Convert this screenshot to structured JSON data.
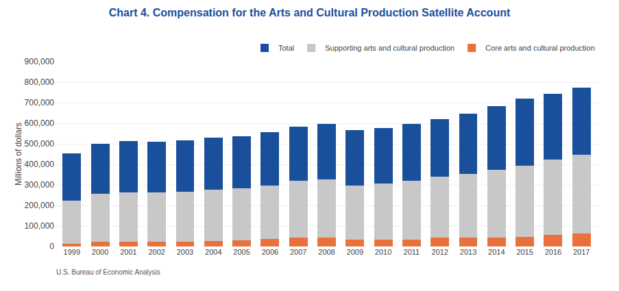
{
  "chart_data": {
    "type": "bar",
    "stacked": true,
    "title": "Chart 4. Compensation for the Arts and Cultural Production Satellite Account",
    "ylabel": "Millions of dollars",
    "annotations": [
      "U.S. Bureau of Economic Analysis"
    ],
    "categories": [
      "1999",
      "2000",
      "2001",
      "2002",
      "2003",
      "2004",
      "2005",
      "2006",
      "2007",
      "2008",
      "2009",
      "2010",
      "2011",
      "2012",
      "2013",
      "2014",
      "2015",
      "2016",
      "2017"
    ],
    "series": [
      {
        "name": "Core arts and cultural production",
        "color": "#e8713c",
        "values": [
          15000,
          22000,
          23000,
          23000,
          25000,
          28000,
          30000,
          38000,
          42000,
          42000,
          33000,
          35000,
          35000,
          42000,
          42000,
          45000,
          48000,
          58000,
          63000
        ]
      },
      {
        "name": "Supporting arts and cultural production",
        "color": "#c8c8c8",
        "values": [
          210000,
          235000,
          240000,
          240000,
          243000,
          248000,
          253000,
          260000,
          278000,
          285000,
          265000,
          272000,
          285000,
          298000,
          310000,
          327000,
          347000,
          365000,
          385000
        ]
      },
      {
        "name": "Total",
        "color": "#1a4f9c",
        "values": [
          230000,
          243000,
          249000,
          247000,
          249000,
          254000,
          254000,
          260000,
          265000,
          271000,
          269000,
          271000,
          277000,
          280000,
          296000,
          311000,
          325000,
          320000,
          327000
        ]
      }
    ],
    "ylim": [
      0,
      900000
    ],
    "yticks": [
      0,
      {
        "value": 100000,
        "label": "100,000"
      },
      {
        "value": 200000,
        "label": "200,000"
      },
      {
        "value": 300000,
        "label": "300,000"
      },
      {
        "value": 400000,
        "label": "400,000"
      },
      {
        "value": 500000,
        "label": "500,000"
      },
      {
        "value": 600000,
        "label": "600,000"
      },
      {
        "value": 700000,
        "label": "700,000"
      },
      {
        "value": 800000,
        "label": "800,000"
      },
      {
        "value": 900000,
        "label": "900,000"
      }
    ],
    "grid": true,
    "legend": "upper right"
  }
}
